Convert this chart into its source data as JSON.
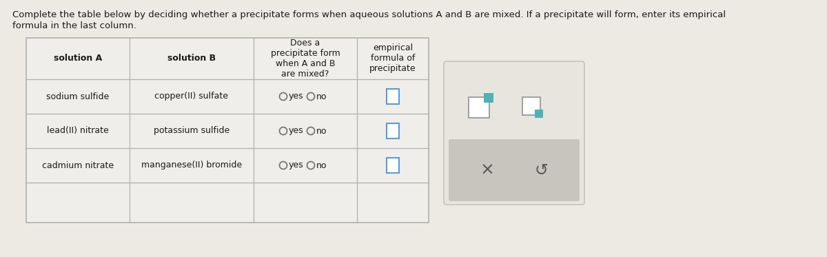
{
  "title_line1": "Complete the table below by deciding whether a precipitate forms when aqueous solutions A and B are mixed. If a precipitate will form, enter its empirical",
  "title_line2": "formula in the last column.",
  "title_fontsize": 9.5,
  "bg_color": "#edeae4",
  "table_bg": "#f0eeea",
  "border_color": "#b0b0b0",
  "col_headers": [
    "solution A",
    "solution B",
    "Does a\nprecipitate form\nwhen A and B\nare mixed?",
    "empirical\nformula of\nprecipitate"
  ],
  "rows": [
    [
      "sodium sulfide",
      "copper(II) sulfate"
    ],
    [
      "lead(II) nitrate",
      "potassium sulfide"
    ],
    [
      "cadmium nitrate",
      "manganese(II) bromide"
    ]
  ],
  "text_color": "#1a1a1a",
  "circle_stroke": "#777777",
  "input_box_color": "#5b9bd5",
  "panel_icon_color": "#4db3b3",
  "panel_icon_stroke": "#888888",
  "panel_bar_color": "#c8c5be",
  "panel_bg": "#e8e5df",
  "panel_border": "#c0bdb7",
  "x_color": "#555555",
  "undo_color": "#555555"
}
